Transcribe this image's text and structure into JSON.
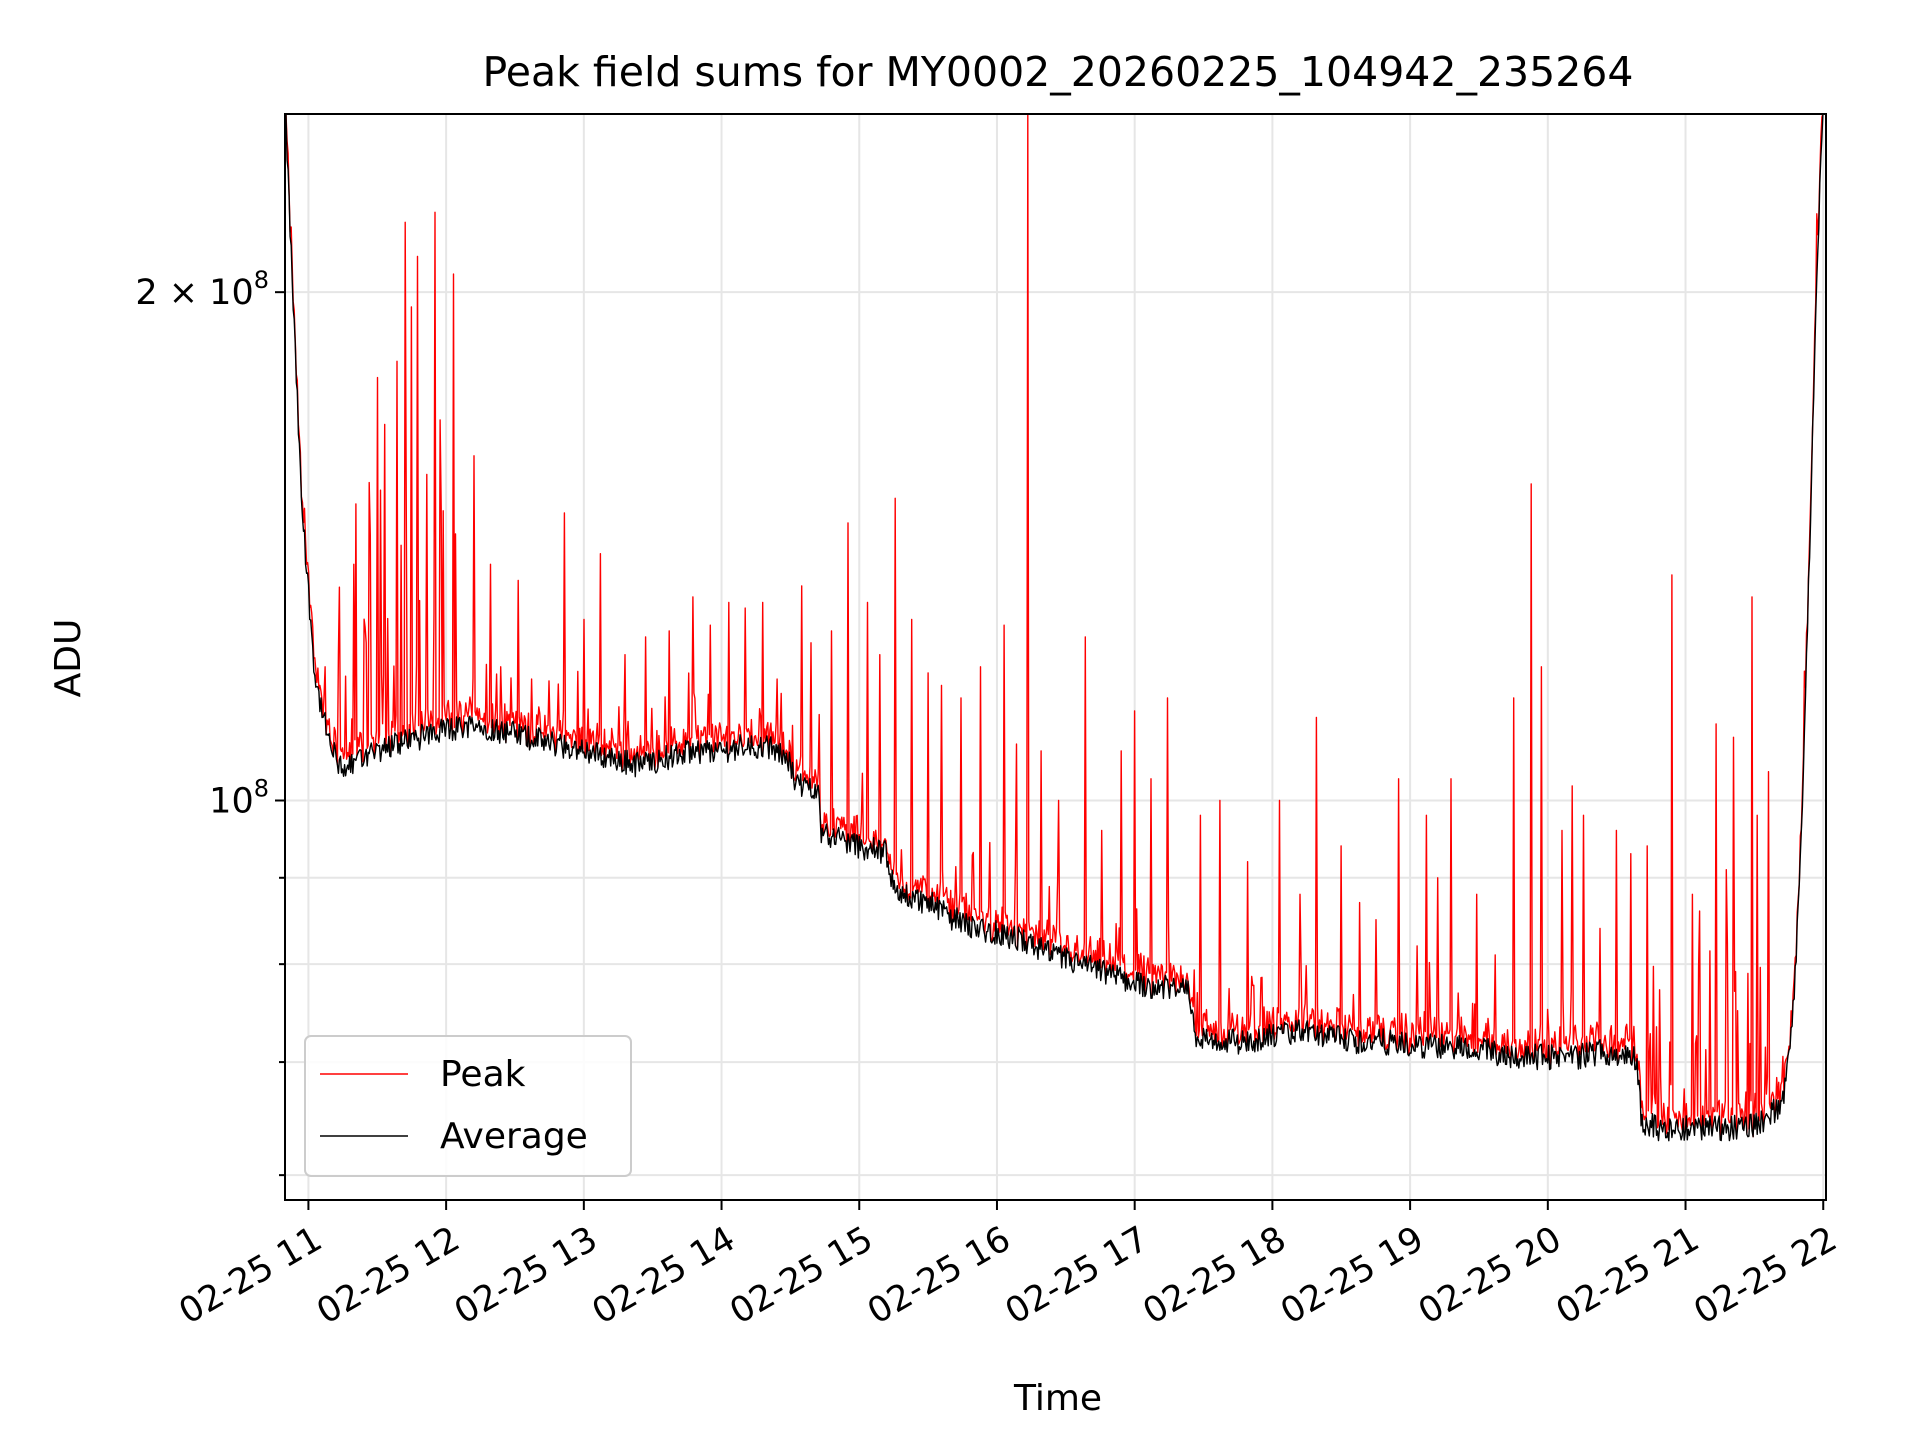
{
  "chart_data": {
    "type": "line",
    "title": "Peak field sums for MY0002_20260225_104942_235264",
    "xlabel": "Time",
    "ylabel": "ADU",
    "yscale": "log",
    "ylim": [
      58000000,
      255000000
    ],
    "xlim_hours": [
      10.83,
      22.02
    ],
    "x_ticks": [
      {
        "hour": 11,
        "label": "02-25 11"
      },
      {
        "hour": 12,
        "label": "02-25 12"
      },
      {
        "hour": 13,
        "label": "02-25 13"
      },
      {
        "hour": 14,
        "label": "02-25 14"
      },
      {
        "hour": 15,
        "label": "02-25 15"
      },
      {
        "hour": 16,
        "label": "02-25 16"
      },
      {
        "hour": 17,
        "label": "02-25 17"
      },
      {
        "hour": 18,
        "label": "02-25 18"
      },
      {
        "hour": 19,
        "label": "02-25 19"
      },
      {
        "hour": 20,
        "label": "02-25 20"
      },
      {
        "hour": 21,
        "label": "02-25 21"
      },
      {
        "hour": 22,
        "label": "02-25 22"
      }
    ],
    "y_major_ticks": [
      {
        "value": 100000000,
        "base": "10",
        "exp": "8",
        "coef": ""
      },
      {
        "value": 200000000,
        "base": "10",
        "exp": "8",
        "coef": "2 × "
      }
    ],
    "y_minor_ticks": [
      60000000,
      70000000,
      80000000,
      90000000
    ],
    "grid": true,
    "legend": {
      "placement": "lower-left",
      "entries": [
        {
          "name": "Peak",
          "color": "#ff0000"
        },
        {
          "name": "Average",
          "color": "#000000"
        }
      ]
    },
    "baseline": [
      [
        10.83,
        260000000
      ],
      [
        10.87,
        215000000
      ],
      [
        10.95,
        150000000
      ],
      [
        11.05,
        118000000
      ],
      [
        11.15,
        108000000
      ],
      [
        11.25,
        104000000
      ],
      [
        11.4,
        106000000
      ],
      [
        11.6,
        108000000
      ],
      [
        11.8,
        109000000
      ],
      [
        12.0,
        110000000
      ],
      [
        12.2,
        111000000
      ],
      [
        12.4,
        110000000
      ],
      [
        12.6,
        109000000
      ],
      [
        12.8,
        108000000
      ],
      [
        13.0,
        107000000
      ],
      [
        13.2,
        106000000
      ],
      [
        13.4,
        105000000
      ],
      [
        13.6,
        106000000
      ],
      [
        13.8,
        107000000
      ],
      [
        14.0,
        107000000
      ],
      [
        14.2,
        108000000
      ],
      [
        14.4,
        107000000
      ],
      [
        14.5,
        105000000
      ],
      [
        14.55,
        102000000
      ],
      [
        14.7,
        102000000
      ],
      [
        14.72,
        96000000
      ],
      [
        14.85,
        95000000
      ],
      [
        15.0,
        94000000
      ],
      [
        15.2,
        93000000
      ],
      [
        15.25,
        88500000
      ],
      [
        15.4,
        87500000
      ],
      [
        15.5,
        87000000
      ],
      [
        15.6,
        86000000
      ],
      [
        15.7,
        85000000
      ],
      [
        15.85,
        84000000
      ],
      [
        16.0,
        83500000
      ],
      [
        16.2,
        82500000
      ],
      [
        16.4,
        81000000
      ],
      [
        16.6,
        80000000
      ],
      [
        16.8,
        79000000
      ],
      [
        17.0,
        78000000
      ],
      [
        17.2,
        77500000
      ],
      [
        17.4,
        77000000
      ],
      [
        17.45,
        72500000
      ],
      [
        17.6,
        72000000
      ],
      [
        17.8,
        72000000
      ],
      [
        18.0,
        72500000
      ],
      [
        18.2,
        73000000
      ],
      [
        18.4,
        72500000
      ],
      [
        18.6,
        72000000
      ],
      [
        18.8,
        72000000
      ],
      [
        19.0,
        71500000
      ],
      [
        19.2,
        71500000
      ],
      [
        19.4,
        71500000
      ],
      [
        19.6,
        71000000
      ],
      [
        19.8,
        70500000
      ],
      [
        20.0,
        70500000
      ],
      [
        20.2,
        70500000
      ],
      [
        20.4,
        71000000
      ],
      [
        20.6,
        70500000
      ],
      [
        20.65,
        70000000
      ],
      [
        20.68,
        64500000
      ],
      [
        20.8,
        64000000
      ],
      [
        21.0,
        64000000
      ],
      [
        21.2,
        64000000
      ],
      [
        21.4,
        64000000
      ],
      [
        21.55,
        64500000
      ],
      [
        21.7,
        66000000
      ],
      [
        21.75,
        70000000
      ],
      [
        21.8,
        80000000
      ],
      [
        21.85,
        100000000
      ],
      [
        21.9,
        140000000
      ],
      [
        21.95,
        200000000
      ],
      [
        22.0,
        260000000
      ]
    ],
    "spikes": [
      [
        11.08,
        117000000
      ],
      [
        11.12,
        120000000
      ],
      [
        11.22,
        122000000
      ],
      [
        11.33,
        138000000
      ],
      [
        11.42,
        124000000
      ],
      [
        11.5,
        178000000
      ],
      [
        11.55,
        167000000
      ],
      [
        11.64,
        182000000
      ],
      [
        11.7,
        220000000
      ],
      [
        11.75,
        196000000
      ],
      [
        11.79,
        210000000
      ],
      [
        11.86,
        156000000
      ],
      [
        11.92,
        223000000
      ],
      [
        11.96,
        168000000
      ],
      [
        12.05,
        205000000
      ],
      [
        12.2,
        160000000
      ],
      [
        12.32,
        138000000
      ],
      [
        12.4,
        120000000
      ],
      [
        12.52,
        135000000
      ],
      [
        12.62,
        118000000
      ],
      [
        12.86,
        148000000
      ],
      [
        13.0,
        128000000
      ],
      [
        13.12,
        140000000
      ],
      [
        13.3,
        122000000
      ],
      [
        13.45,
        125000000
      ],
      [
        13.62,
        126000000
      ],
      [
        13.79,
        132000000
      ],
      [
        13.92,
        127000000
      ],
      [
        14.05,
        131000000
      ],
      [
        14.17,
        130000000
      ],
      [
        14.3,
        131000000
      ],
      [
        14.4,
        118000000
      ],
      [
        14.58,
        134000000
      ],
      [
        14.65,
        124000000
      ],
      [
        14.8,
        126000000
      ],
      [
        14.92,
        146000000
      ],
      [
        15.06,
        131000000
      ],
      [
        15.15,
        122000000
      ],
      [
        15.26,
        151000000
      ],
      [
        15.38,
        128000000
      ],
      [
        15.5,
        119000000
      ],
      [
        15.6,
        117000000
      ],
      [
        15.74,
        115000000
      ],
      [
        15.88,
        120000000
      ],
      [
        16.05,
        127000000
      ],
      [
        16.14,
        108000000
      ],
      [
        16.22,
        255000000
      ],
      [
        16.32,
        107000000
      ],
      [
        16.45,
        100000000
      ],
      [
        16.64,
        125000000
      ],
      [
        16.76,
        96000000
      ],
      [
        16.9,
        107000000
      ],
      [
        17.0,
        113000000
      ],
      [
        17.12,
        103000000
      ],
      [
        17.24,
        115000000
      ],
      [
        17.48,
        98000000
      ],
      [
        17.62,
        100000000
      ],
      [
        17.82,
        92000000
      ],
      [
        18.05,
        100000000
      ],
      [
        18.2,
        88000000
      ],
      [
        18.32,
        112000000
      ],
      [
        18.5,
        94000000
      ],
      [
        18.63,
        87000000
      ],
      [
        18.75,
        85000000
      ],
      [
        18.92,
        103000000
      ],
      [
        19.05,
        82000000
      ],
      [
        19.12,
        98000000
      ],
      [
        19.2,
        90000000
      ],
      [
        19.3,
        103000000
      ],
      [
        19.48,
        88000000
      ],
      [
        19.62,
        81000000
      ],
      [
        19.75,
        115000000
      ],
      [
        19.88,
        154000000
      ],
      [
        19.95,
        120000000
      ],
      [
        20.1,
        96000000
      ],
      [
        20.18,
        102000000
      ],
      [
        20.26,
        98000000
      ],
      [
        20.38,
        84000000
      ],
      [
        20.5,
        96000000
      ],
      [
        20.6,
        93000000
      ],
      [
        20.72,
        94000000
      ],
      [
        20.9,
        136000000
      ],
      [
        21.05,
        88000000
      ],
      [
        21.1,
        86000000
      ],
      [
        21.22,
        111000000
      ],
      [
        21.3,
        91000000
      ],
      [
        21.35,
        109000000
      ],
      [
        21.45,
        79000000
      ],
      [
        21.48,
        132000000
      ],
      [
        21.52,
        98000000
      ],
      [
        21.6,
        104000000
      ]
    ]
  }
}
